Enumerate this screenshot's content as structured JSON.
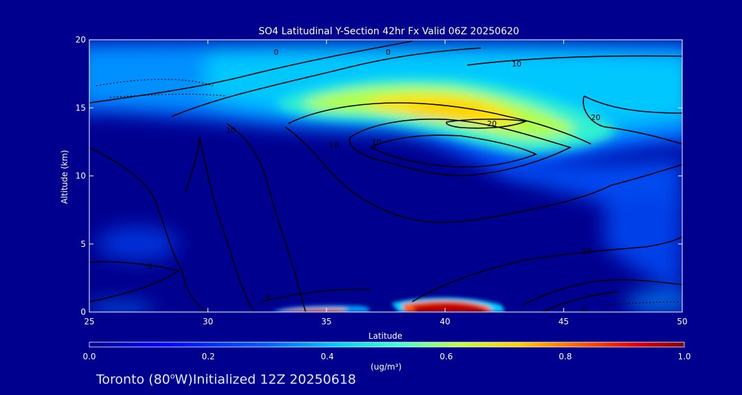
{
  "chart_data": {
    "type": "heatmap",
    "title": "SO4 Latitudinal Y-Section 42hr  Fx Valid 06Z 20250620",
    "xlabel": "Latitude",
    "ylabel": "Altitude (km)",
    "xlim": [
      25,
      50
    ],
    "ylim": [
      0,
      20
    ],
    "x_ticks": [
      "25",
      "30",
      "35",
      "40",
      "45",
      "50"
    ],
    "y_ticks": [
      "0",
      "5",
      "10",
      "15",
      "20"
    ],
    "colorbar": {
      "label": "(ug/m³)",
      "range": [
        0.0,
        1.0
      ],
      "ticks": [
        "0.0",
        "0.2",
        "0.4",
        "0.6",
        "0.8",
        "1.0"
      ],
      "colors": [
        "#00008f",
        "#0000ff",
        "#00a0ff",
        "#00ffff",
        "#7fff7f",
        "#ffff00",
        "#ff8000",
        "#ff0000",
        "#800000"
      ]
    },
    "concentration_features": [
      {
        "lat": [
          25,
          50
        ],
        "alt": [
          15,
          19
        ],
        "value": 0.3
      },
      {
        "lat": [
          34,
          47
        ],
        "alt": [
          12.5,
          16
        ],
        "value": 0.55
      },
      {
        "lat": [
          36,
          43
        ],
        "alt": [
          14,
          15.5
        ],
        "value": 0.65
      },
      {
        "lat": [
          40,
          46
        ],
        "alt": [
          8,
          12.5
        ],
        "value": 0.3
      },
      {
        "lat": [
          32.5,
          36
        ],
        "alt": [
          0,
          0.4
        ],
        "value": 1.0
      },
      {
        "lat": [
          39,
          42.5
        ],
        "alt": [
          0,
          0.8
        ],
        "value": 1.0
      },
      {
        "lat": [
          26,
          28.5
        ],
        "alt": [
          4,
          6
        ],
        "value": 0.15
      },
      {
        "lat": [
          44,
          50
        ],
        "alt": [
          0,
          8
        ],
        "value": 0.2
      }
    ],
    "contour_labels": [
      "0",
      "0",
      "0",
      "0",
      "10",
      "10",
      "10",
      "10",
      "10",
      "20",
      "20",
      "0"
    ]
  },
  "footer": {
    "location": "Toronto (80",
    "degree": "o",
    "rest": "W)Initialized 12Z 20250618"
  }
}
